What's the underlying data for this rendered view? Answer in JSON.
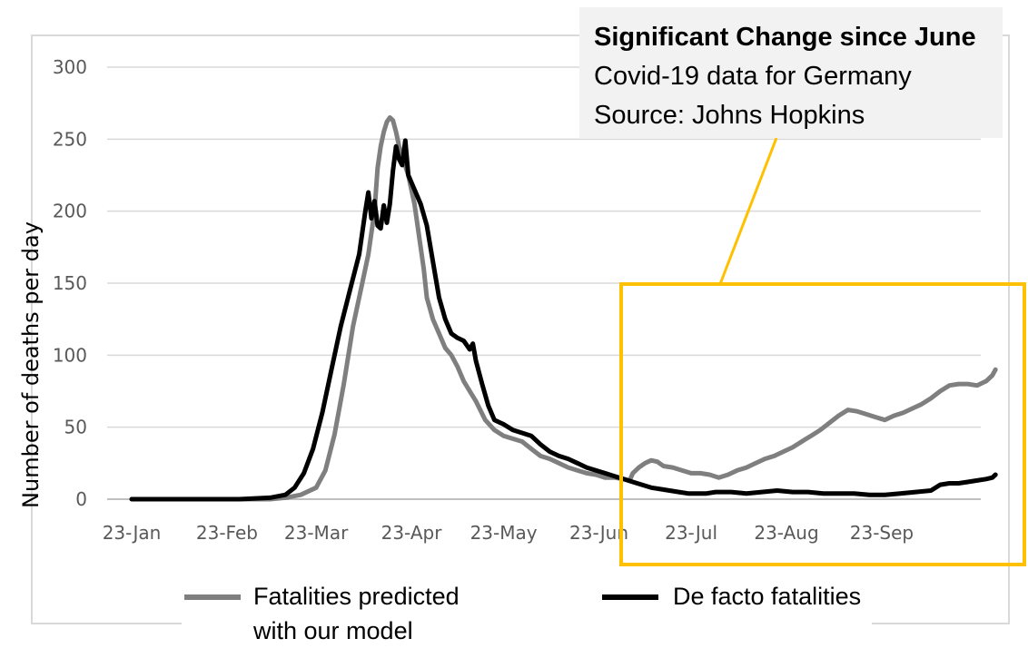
{
  "chart_data": {
    "type": "line",
    "title": "",
    "xlabel": "",
    "ylabel": "Number of deaths per day",
    "ylim": [
      0,
      300
    ],
    "yticks": [
      "0",
      "50",
      "100",
      "150",
      "200",
      "250",
      "300"
    ],
    "xticks": [
      "23-Jan",
      "23-Feb",
      "23-Mar",
      "23-Apr",
      "23-May",
      "23-Jun",
      "23-Jul",
      "23-Aug",
      "23-Sep"
    ],
    "x_unit": "days after 23-Jan",
    "grid": true,
    "series": [
      {
        "name": "Fatalities predicted with our model",
        "color": "#7f7f7f",
        "points": [
          [
            0,
            0
          ],
          [
            20,
            0
          ],
          [
            35,
            0
          ],
          [
            45,
            0
          ],
          [
            50,
            1
          ],
          [
            55,
            3
          ],
          [
            60,
            8
          ],
          [
            63,
            20
          ],
          [
            66,
            45
          ],
          [
            69,
            80
          ],
          [
            72,
            120
          ],
          [
            75,
            150
          ],
          [
            77,
            170
          ],
          [
            79,
            200
          ],
          [
            80,
            230
          ],
          [
            81,
            245
          ],
          [
            82,
            255
          ],
          [
            83,
            262
          ],
          [
            84,
            265
          ],
          [
            85,
            263
          ],
          [
            86,
            255
          ],
          [
            87,
            245
          ],
          [
            88,
            238
          ],
          [
            90,
            225
          ],
          [
            92,
            205
          ],
          [
            93,
            190
          ],
          [
            94,
            175
          ],
          [
            95,
            160
          ],
          [
            96,
            140
          ],
          [
            98,
            125
          ],
          [
            100,
            115
          ],
          [
            102,
            105
          ],
          [
            104,
            100
          ],
          [
            106,
            92
          ],
          [
            108,
            82
          ],
          [
            110,
            75
          ],
          [
            112,
            68
          ],
          [
            115,
            55
          ],
          [
            118,
            48
          ],
          [
            121,
            44
          ],
          [
            124,
            42
          ],
          [
            127,
            40
          ],
          [
            130,
            35
          ],
          [
            133,
            30
          ],
          [
            136,
            28
          ],
          [
            139,
            25
          ],
          [
            142,
            22
          ],
          [
            145,
            20
          ],
          [
            148,
            18
          ],
          [
            151,
            17
          ],
          [
            154,
            15
          ],
          [
            157,
            15
          ],
          [
            160,
            14
          ],
          [
            162,
            13
          ],
          [
            163,
            18
          ],
          [
            165,
            22
          ],
          [
            167,
            25
          ],
          [
            169,
            27
          ],
          [
            171,
            26
          ],
          [
            173,
            23
          ],
          [
            176,
            22
          ],
          [
            179,
            20
          ],
          [
            182,
            18
          ],
          [
            185,
            18
          ],
          [
            188,
            17
          ],
          [
            191,
            15
          ],
          [
            194,
            17
          ],
          [
            197,
            20
          ],
          [
            200,
            22
          ],
          [
            203,
            25
          ],
          [
            206,
            28
          ],
          [
            209,
            30
          ],
          [
            212,
            33
          ],
          [
            215,
            36
          ],
          [
            218,
            40
          ],
          [
            221,
            44
          ],
          [
            224,
            48
          ],
          [
            227,
            53
          ],
          [
            230,
            58
          ],
          [
            233,
            62
          ],
          [
            236,
            61
          ],
          [
            239,
            59
          ],
          [
            242,
            57
          ],
          [
            245,
            55
          ],
          [
            248,
            58
          ],
          [
            251,
            60
          ],
          [
            254,
            63
          ],
          [
            257,
            66
          ],
          [
            260,
            70
          ],
          [
            263,
            75
          ],
          [
            266,
            79
          ],
          [
            269,
            80
          ],
          [
            272,
            80
          ],
          [
            275,
            79
          ],
          [
            278,
            82
          ],
          [
            280,
            86
          ],
          [
            281,
            90
          ]
        ]
      },
      {
        "name": "De facto fatalities",
        "color": "#000000",
        "points": [
          [
            0,
            0
          ],
          [
            20,
            0
          ],
          [
            35,
            0
          ],
          [
            45,
            1
          ],
          [
            50,
            3
          ],
          [
            53,
            8
          ],
          [
            56,
            18
          ],
          [
            59,
            35
          ],
          [
            62,
            60
          ],
          [
            65,
            90
          ],
          [
            68,
            120
          ],
          [
            71,
            145
          ],
          [
            74,
            170
          ],
          [
            76,
            200
          ],
          [
            77,
            213
          ],
          [
            78,
            195
          ],
          [
            79,
            207
          ],
          [
            80,
            190
          ],
          [
            81,
            188
          ],
          [
            82,
            204
          ],
          [
            83,
            192
          ],
          [
            84,
            205
          ],
          [
            85,
            228
          ],
          [
            86,
            245
          ],
          [
            87,
            236
          ],
          [
            88,
            232
          ],
          [
            89,
            249
          ],
          [
            90,
            225
          ],
          [
            92,
            215
          ],
          [
            94,
            205
          ],
          [
            96,
            190
          ],
          [
            98,
            165
          ],
          [
            100,
            140
          ],
          [
            102,
            125
          ],
          [
            104,
            115
          ],
          [
            106,
            112
          ],
          [
            108,
            110
          ],
          [
            110,
            104
          ],
          [
            111,
            108
          ],
          [
            112,
            96
          ],
          [
            114,
            80
          ],
          [
            116,
            65
          ],
          [
            118,
            55
          ],
          [
            121,
            52
          ],
          [
            124,
            48
          ],
          [
            127,
            46
          ],
          [
            130,
            44
          ],
          [
            133,
            38
          ],
          [
            136,
            33
          ],
          [
            139,
            30
          ],
          [
            142,
            28
          ],
          [
            145,
            25
          ],
          [
            148,
            22
          ],
          [
            151,
            20
          ],
          [
            154,
            18
          ],
          [
            157,
            16
          ],
          [
            160,
            14
          ],
          [
            163,
            12
          ],
          [
            166,
            10
          ],
          [
            169,
            8
          ],
          [
            172,
            7
          ],
          [
            175,
            6
          ],
          [
            178,
            5
          ],
          [
            181,
            4
          ],
          [
            184,
            4
          ],
          [
            187,
            4
          ],
          [
            190,
            5
          ],
          [
            195,
            5
          ],
          [
            200,
            4
          ],
          [
            205,
            5
          ],
          [
            210,
            6
          ],
          [
            215,
            5
          ],
          [
            220,
            5
          ],
          [
            225,
            4
          ],
          [
            230,
            4
          ],
          [
            235,
            4
          ],
          [
            240,
            3
          ],
          [
            245,
            3
          ],
          [
            250,
            4
          ],
          [
            255,
            5
          ],
          [
            260,
            6
          ],
          [
            263,
            10
          ],
          [
            266,
            11
          ],
          [
            269,
            11
          ],
          [
            272,
            12
          ],
          [
            275,
            13
          ],
          [
            278,
            14
          ],
          [
            280,
            15
          ],
          [
            281,
            17
          ]
        ]
      }
    ],
    "callout": {
      "title": "Significant Change since June",
      "line1": "Covid-19 data for Germany",
      "line2": "Source: Johns Hopkins"
    },
    "highlight_color": "#ffc000"
  },
  "legend": {
    "predicted_line1": "Fatalities predicted",
    "predicted_line2": "with our model",
    "actual": "De facto fatalities"
  }
}
